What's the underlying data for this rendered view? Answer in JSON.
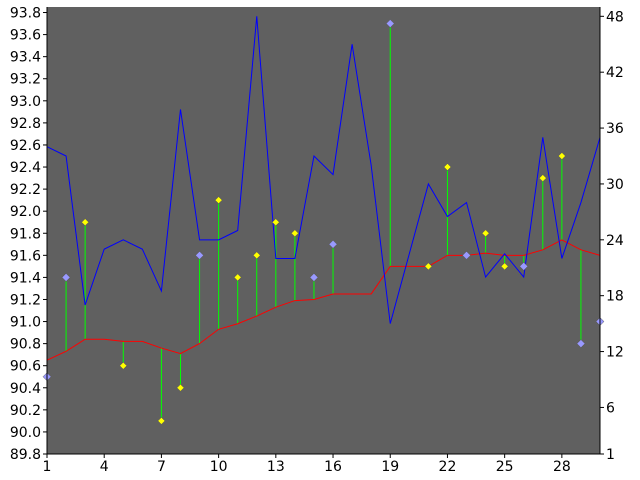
{
  "chart_data": {
    "type": "line",
    "title": "",
    "xlabel": "",
    "ylabel_left": "",
    "ylabel_right": "",
    "x": [
      1,
      2,
      3,
      4,
      5,
      6,
      7,
      8,
      9,
      10,
      11,
      12,
      13,
      14,
      15,
      16,
      17,
      18,
      19,
      20,
      21,
      22,
      23,
      24,
      25,
      26,
      27,
      28,
      29,
      30
    ],
    "xlim": [
      1,
      30
    ],
    "x_ticks": [
      1,
      4,
      7,
      10,
      13,
      16,
      19,
      22,
      25,
      28
    ],
    "ylim_left": [
      89.8,
      93.85
    ],
    "y_ticks_left": [
      "89.8",
      "90.0",
      "90.2",
      "90.4",
      "90.6",
      "90.8",
      "91.0",
      "91.2",
      "91.4",
      "91.6",
      "91.8",
      "92.0",
      "92.2",
      "92.4",
      "92.6",
      "92.8",
      "93.0",
      "93.2",
      "93.4",
      "93.6",
      "93.8"
    ],
    "ylim_right": [
      1,
      49
    ],
    "y_ticks_right": [
      "1",
      "6",
      "12",
      "18",
      "24",
      "30",
      "36",
      "42",
      "48"
    ],
    "grid": false,
    "legend": "none",
    "colors": {
      "plot_background": "#606060",
      "blue_line": "#0000ff",
      "red_line": "#ff0000",
      "stems": "#00ff00",
      "yellow_marker": "#ffff00",
      "lavender_marker": "#9999ff"
    },
    "series": [
      {
        "axis": "left",
        "style": "markers-with-stems",
        "values": [
          90.5,
          91.4,
          91.9,
          null,
          90.6,
          null,
          90.1,
          90.4,
          91.6,
          92.1,
          91.4,
          91.6,
          91.9,
          91.8,
          91.4,
          91.7,
          null,
          null,
          93.7,
          null,
          91.5,
          92.4,
          91.6,
          91.8,
          91.5,
          91.5,
          92.3,
          92.5,
          90.8,
          91.0
        ],
        "marker_colors": [
          "lavender",
          "lavender",
          "yellow",
          null,
          "yellow",
          null,
          "yellow",
          "yellow",
          "lavender",
          "yellow",
          "yellow",
          "yellow",
          "yellow",
          "yellow",
          "lavender",
          "lavender",
          null,
          null,
          "lavender",
          null,
          "yellow",
          "yellow",
          "lavender",
          "yellow",
          "yellow",
          "lavender",
          "yellow",
          "yellow",
          "lavender",
          "lavender"
        ]
      },
      {
        "axis": "left",
        "style": "line",
        "color": "red",
        "values": [
          90.65,
          90.73,
          90.84,
          90.84,
          90.82,
          90.82,
          90.76,
          90.71,
          90.8,
          90.93,
          90.98,
          91.05,
          91.13,
          91.19,
          91.2,
          91.25,
          91.25,
          91.25,
          91.5,
          91.5,
          91.5,
          91.6,
          91.6,
          91.62,
          91.6,
          91.6,
          91.65,
          91.74,
          91.65,
          91.6
        ]
      },
      {
        "axis": "right",
        "style": "line",
        "color": "blue",
        "values": [
          34,
          33,
          17,
          23,
          24,
          23,
          18.5,
          38,
          24,
          24,
          25,
          48,
          22,
          22,
          33,
          31,
          45,
          32,
          15,
          22.5,
          30,
          26.5,
          28,
          20,
          22.5,
          20,
          35,
          22,
          28,
          35
        ]
      }
    ]
  }
}
